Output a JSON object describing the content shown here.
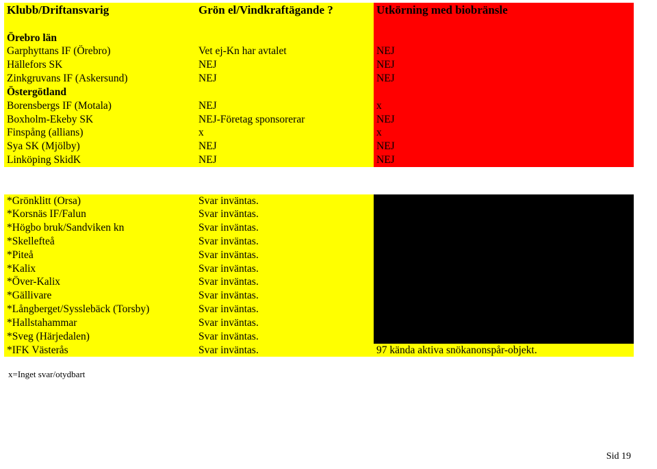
{
  "colors": {
    "yellow": "#ffff00",
    "red": "#ff0000",
    "black": "#000000",
    "white": "#ffffff"
  },
  "header": {
    "c1": "Klubb/Driftansvarig",
    "c2": "Grön el/Vindkraftägande ?",
    "c3": "Utkörning med biobränsle"
  },
  "section1": {
    "c1": "Örebro län"
  },
  "t1": {
    "r0": {
      "c1": "Garphyttans IF (Örebro)",
      "c2": "Vet ej-Kn har avtalet",
      "c3": "NEJ"
    },
    "r1": {
      "c1": "Hällefors SK",
      "c2": "NEJ",
      "c3": "NEJ"
    },
    "r2": {
      "c1": "Zinkgruvans IF (Askersund)",
      "c2": "NEJ",
      "c3": "NEJ"
    }
  },
  "section2": {
    "c1": "Östergötland"
  },
  "t2": {
    "r0": {
      "c1": "Borensbergs IF (Motala)",
      "c2": "NEJ",
      "c3": "x"
    },
    "r1": {
      "c1": "Boxholm-Ekeby SK",
      "c2": "NEJ-Företag sponsorerar",
      "c3": "NEJ"
    },
    "r2": {
      "c1": "Finspång (allians)",
      "c2": "x",
      "c3": "x"
    },
    "r3": {
      "c1": "Sya SK (Mjölby)",
      "c2": "NEJ",
      "c3": "NEJ"
    },
    "r4": {
      "c1": "Linköping SkidK",
      "c2": "NEJ",
      "c3": "NEJ"
    }
  },
  "t3": {
    "r0": {
      "c1": "*Grönklitt (Orsa)",
      "c2": "Svar inväntas."
    },
    "r1": {
      "c1": "*Korsnäs IF/Falun",
      "c2": "Svar inväntas."
    },
    "r2": {
      "c1": "*Högbo bruk/Sandviken kn",
      "c2": "Svar inväntas."
    },
    "r3": {
      "c1": "*Skellefteå",
      "c2": "Svar inväntas."
    },
    "r4": {
      "c1": "*Piteå",
      "c2": "Svar inväntas."
    },
    "r5": {
      "c1": "*Kalix",
      "c2": "Svar inväntas."
    },
    "r6": {
      "c1": "*Över-Kalix",
      "c2": "Svar inväntas."
    },
    "r7": {
      "c1": "*Gällivare",
      "c2": "Svar inväntas."
    },
    "r8": {
      "c1": "*Långberget/Sysslebäck (Torsby)",
      "c2": "Svar inväntas."
    },
    "r9": {
      "c1": "*Hallstahammar",
      "c2": "Svar inväntas."
    },
    "r10": {
      "c1": "*Sveg (Härjedalen)",
      "c2": "Svar inväntas."
    },
    "r11": {
      "c1": "*IFK Västerås",
      "c2": "Svar inväntas.",
      "c3": "97 kända aktiva snökanonspår-objekt."
    }
  },
  "footer": {
    "legend": "x=Inget svar/otydbart",
    "page": "Sid 19"
  }
}
